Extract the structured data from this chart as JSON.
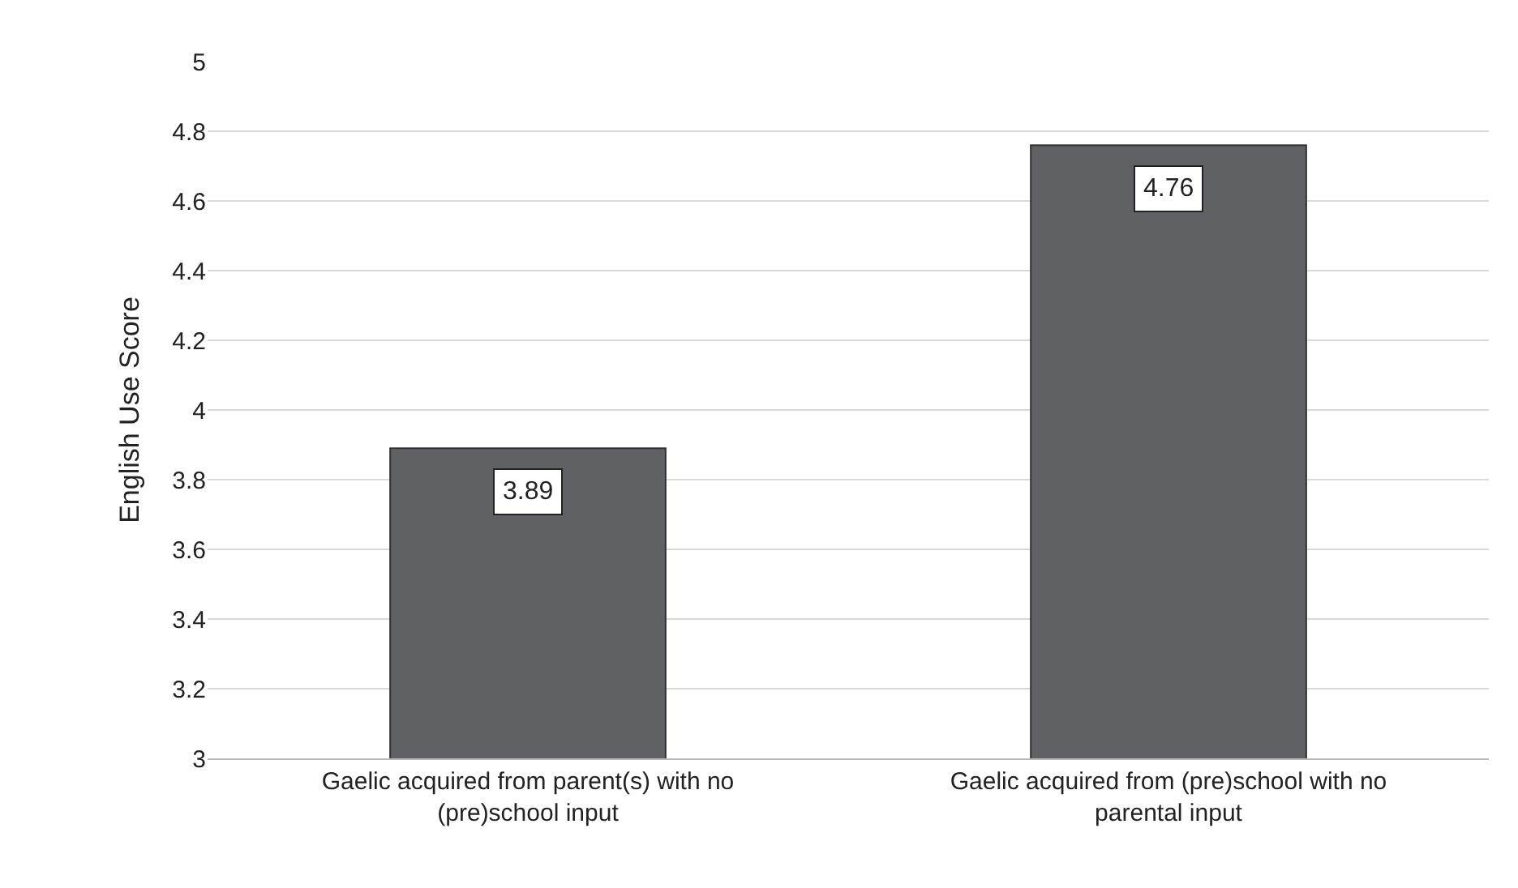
{
  "chart_data": {
    "type": "bar",
    "ylabel": "English Use Score",
    "categories": [
      "Gaelic acquired from parent(s) with no (pre)school input",
      "Gaelic acquired from (pre)school with no parental input"
    ],
    "values": [
      3.89,
      4.76
    ],
    "color": "#606164",
    "ylim": [
      3,
      5
    ],
    "yticks": [
      3,
      3.2,
      3.4,
      3.6,
      3.8,
      4,
      4.2,
      4.4,
      4.6,
      4.8,
      5
    ],
    "grid": "y",
    "data_labels": true
  }
}
